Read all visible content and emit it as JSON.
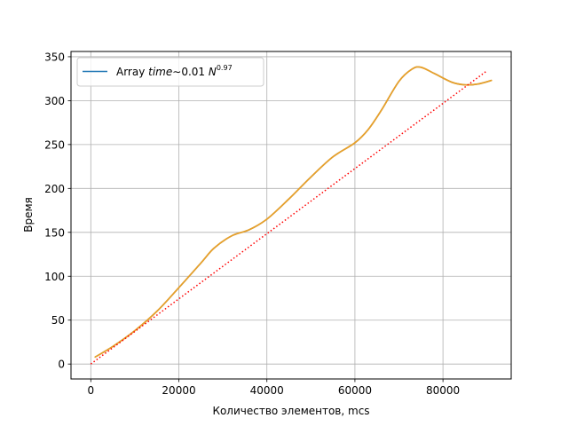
{
  "chart_data": {
    "type": "line",
    "title": "",
    "xlabel": "Количество элементов, mcs",
    "ylabel": "Время",
    "xlim": [
      -4500,
      95500
    ],
    "ylim": [
      -17,
      356
    ],
    "xticks": [
      0,
      20000,
      40000,
      60000,
      80000
    ],
    "xtick_labels": [
      "0",
      "20000",
      "40000",
      "60000",
      "80000"
    ],
    "yticks": [
      0,
      50,
      100,
      150,
      200,
      250,
      300,
      350
    ],
    "ytick_labels": [
      "0",
      "50",
      "100",
      "150",
      "200",
      "250",
      "300",
      "350"
    ],
    "grid": true,
    "legend_position": "top-left",
    "legend": {
      "label_prefix": "Array ",
      "label_time": "time",
      "label_mid": "∼0.01 ",
      "label_n": "N",
      "label_exp": "0.97",
      "color": "#1f77b4"
    },
    "series": [
      {
        "name": "Array time∼0.01 N^0.97",
        "color": "#e8a02a",
        "style": "solid",
        "x": [
          1000,
          5000,
          10000,
          15000,
          20000,
          25000,
          28000,
          32000,
          36000,
          40000,
          45000,
          50000,
          55000,
          60000,
          63000,
          66000,
          70000,
          73000,
          75000,
          78000,
          82000,
          85000,
          88000,
          91000
        ],
        "y": [
          8,
          20,
          38,
          60,
          87,
          115,
          132,
          146,
          153,
          165,
          188,
          213,
          236,
          252,
          267,
          289,
          322,
          336,
          338,
          331,
          321,
          318,
          319,
          323
        ]
      },
      {
        "name": "",
        "color": "#ff0000",
        "style": "dotted",
        "x": [
          0,
          90000
        ],
        "y": [
          0,
          334
        ]
      }
    ]
  }
}
